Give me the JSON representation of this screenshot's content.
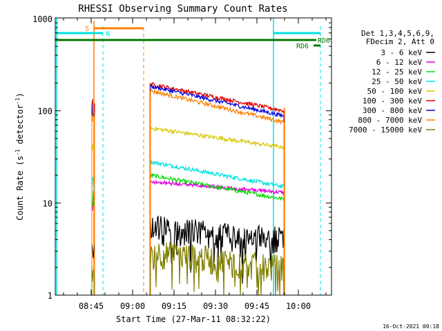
{
  "chart_data": {
    "type": "line",
    "title": "RHESSI Observing Summary Count Rates",
    "xlabel": "Start Time (27-Mar-11 08:32:22)",
    "ylabel_main": "Count Rate (s",
    "ylabel_sup": "-1",
    "ylabel_rest": " detector",
    "ylabel_sup2": "-1",
    "ylabel_close": ")",
    "yscale": "log",
    "ylim": [
      1,
      1000
    ],
    "xlim": [
      "08:32",
      "10:12"
    ],
    "x_ticks": [
      "08:45",
      "09:00",
      "09:15",
      "09:30",
      "09:45",
      "10:00"
    ],
    "y_ticks": [
      "1",
      "10",
      "100",
      "1000"
    ],
    "footer": "16-Oct-2021 00:18",
    "legend": {
      "position": "right",
      "header": [
        "Det 1,3,4,5,6,9,",
        "FDecim 2, Att 0"
      ],
      "entries": [
        {
          "label": "3 - 6 keV",
          "color": "#000000"
        },
        {
          "label": "6 - 12 keV",
          "color": "#e000e0"
        },
        {
          "label": "12 - 25 keV",
          "color": "#00dd00"
        },
        {
          "label": "25 - 50 keV",
          "color": "#00e0e0"
        },
        {
          "label": "50 - 100 keV",
          "color": "#d8c800"
        },
        {
          "label": "100 - 300 keV",
          "color": "#e00000"
        },
        {
          "label": "300 - 800 keV",
          "color": "#0000e0"
        },
        {
          "label": "800 - 7000 keV",
          "color": "#ff7f00"
        },
        {
          "label": "7000 - 15000 keV",
          "color": "#7f7f00"
        }
      ]
    },
    "flags": [
      {
        "label": "S",
        "color": "#ff7f00"
      },
      {
        "label": "N",
        "color": "#00e0e0"
      },
      {
        "label": "RD6",
        "color": "#007700"
      },
      {
        "label": "RD6",
        "color": "#007700"
      }
    ],
    "series": [
      {
        "name": "3 - 6 keV",
        "color": "#000000",
        "start": [
          5.5,
          5.5
        ],
        "end": [
          4,
          3.5
        ]
      },
      {
        "name": "6 - 12 keV",
        "color": "#e000e0",
        "start": [
          17,
          17
        ],
        "end": [
          13,
          13
        ]
      },
      {
        "name": "12 - 25 keV",
        "color": "#00dd00",
        "start": [
          20,
          20
        ],
        "end": [
          11,
          11
        ]
      },
      {
        "name": "25 - 50 keV",
        "color": "#00e0e0",
        "start": [
          28,
          28
        ],
        "end": [
          15,
          15
        ]
      },
      {
        "name": "50 - 100 keV",
        "color": "#d8c800",
        "start": [
          65,
          65
        ],
        "end": [
          40,
          40
        ]
      },
      {
        "name": "100 - 300 keV",
        "color": "#e00000",
        "start": [
          195,
          195
        ],
        "end": [
          100,
          100
        ]
      },
      {
        "name": "300 - 800 keV",
        "color": "#0000e0",
        "start": [
          185,
          185
        ],
        "end": [
          88,
          88
        ]
      },
      {
        "name": "800 - 7000 keV",
        "color": "#ff7f00",
        "start": [
          165,
          165
        ],
        "end": [
          75,
          75
        ]
      },
      {
        "name": "7000 - 15000 keV",
        "color": "#7f7f00",
        "start": [
          3,
          3
        ],
        "end": [
          2,
          2
        ]
      }
    ]
  }
}
